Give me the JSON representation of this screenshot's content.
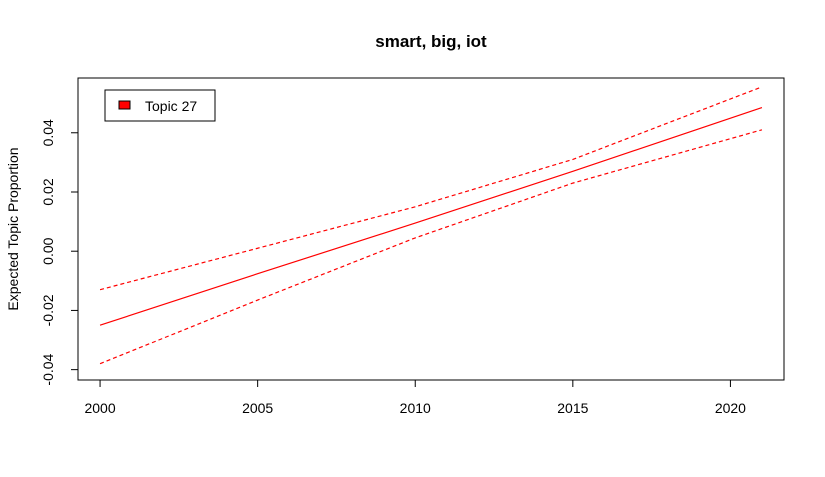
{
  "chart_data": {
    "type": "line",
    "title": "smart, big, iot",
    "xlabel": "",
    "ylabel": "Expected Topic Proportion",
    "xlim": [
      1999.3,
      2021.7
    ],
    "ylim": [
      -0.0435,
      0.0585
    ],
    "x_ticks": [
      2000,
      2005,
      2010,
      2015,
      2020
    ],
    "x_tick_labels": [
      "2000",
      "2005",
      "2010",
      "2015",
      "2020"
    ],
    "y_ticks": [
      -0.04,
      -0.02,
      0.0,
      0.02,
      0.04
    ],
    "y_tick_labels": [
      "-0.04",
      "-0.02",
      "0.00",
      "0.02",
      "0.04"
    ],
    "grid": false,
    "legend_position": "top-left",
    "x": [
      2000,
      2005,
      2010,
      2015,
      2021
    ],
    "series": [
      {
        "name": "Topic 27",
        "role": "estimate",
        "line_style": "solid",
        "color": "#ff0000",
        "values": [
          -0.025,
          -0.0076,
          0.0095,
          0.027,
          0.0485
        ]
      },
      {
        "role": "upper",
        "line_style": "dashed",
        "color": "#ff0000",
        "values": [
          -0.013,
          0.001,
          0.015,
          0.031,
          0.0555
        ]
      },
      {
        "role": "lower",
        "line_style": "dashed",
        "color": "#ff0000",
        "values": [
          -0.038,
          -0.0165,
          0.0045,
          0.023,
          0.041
        ]
      }
    ],
    "legend": [
      {
        "label": "Topic 27",
        "color": "#ff0000"
      }
    ]
  }
}
